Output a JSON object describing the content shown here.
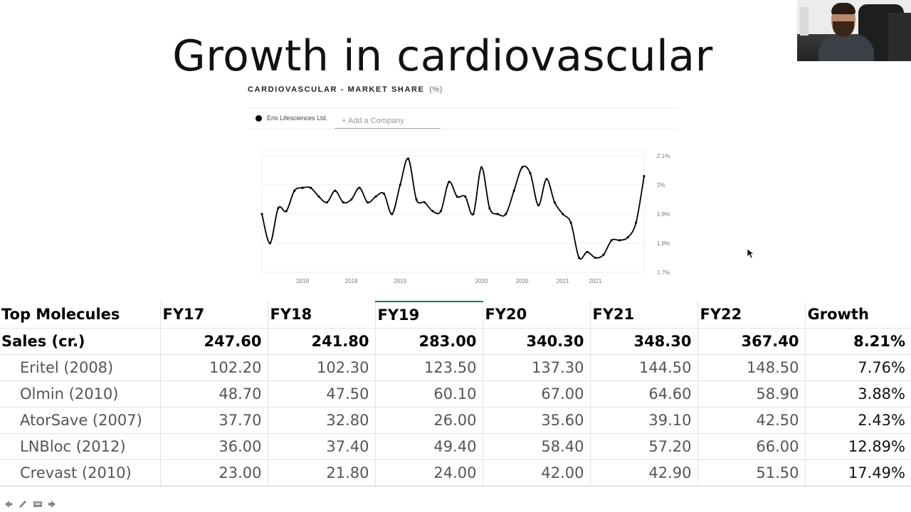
{
  "slide": {
    "title": "Growth in cardiovascular"
  },
  "chart_data": {
    "type": "line",
    "title": "CARDIOVASCULAR - MARKET SHARE",
    "title_unit": "(%)",
    "legend": {
      "entries": [
        "Eris Lifesciences Ltd."
      ],
      "placement": "top-left"
    },
    "add_company_placeholder": "+ Add a Company",
    "x_tick_labels": [
      "2018",
      "2018",
      "2019",
      "2020",
      "2020",
      "2021",
      "2021"
    ],
    "x_tick_positions": [
      10,
      22,
      34,
      54,
      64,
      74,
      82
    ],
    "y_tick_labels": [
      "2.1%",
      "2%",
      "1.9%",
      "1.8%",
      "1.7%"
    ],
    "ylim": [
      1.7,
      2.1
    ],
    "grid": true,
    "series": [
      {
        "name": "Eris Lifesciences Ltd.",
        "color": "#000000",
        "points": [
          [
            0,
            1.9
          ],
          [
            2,
            1.8
          ],
          [
            4,
            1.92
          ],
          [
            6,
            1.91
          ],
          [
            8,
            1.98
          ],
          [
            10,
            1.99
          ],
          [
            12,
            1.99
          ],
          [
            14,
            1.96
          ],
          [
            16,
            1.94
          ],
          [
            18,
            1.98
          ],
          [
            20,
            1.94
          ],
          [
            22,
            1.95
          ],
          [
            24,
            1.99
          ],
          [
            26,
            1.94
          ],
          [
            28,
            1.96
          ],
          [
            30,
            1.97
          ],
          [
            32,
            1.9
          ],
          [
            34,
            2.0
          ],
          [
            36,
            2.09
          ],
          [
            38,
            1.95
          ],
          [
            40,
            1.94
          ],
          [
            42,
            1.91
          ],
          [
            44,
            1.91
          ],
          [
            46,
            2.01
          ],
          [
            48,
            1.96
          ],
          [
            50,
            1.96
          ],
          [
            52,
            1.9
          ],
          [
            54,
            2.06
          ],
          [
            56,
            1.92
          ],
          [
            58,
            1.9
          ],
          [
            60,
            1.9
          ],
          [
            62,
            1.98
          ],
          [
            64,
            2.06
          ],
          [
            66,
            2.04
          ],
          [
            68,
            1.93
          ],
          [
            70,
            2.02
          ],
          [
            72,
            1.94
          ],
          [
            74,
            1.9
          ],
          [
            76,
            1.87
          ],
          [
            78,
            1.75
          ],
          [
            80,
            1.77
          ],
          [
            82,
            1.75
          ],
          [
            84,
            1.76
          ],
          [
            86,
            1.81
          ],
          [
            88,
            1.81
          ],
          [
            90,
            1.82
          ],
          [
            92,
            1.87
          ],
          [
            94,
            2.03
          ]
        ]
      }
    ]
  },
  "table": {
    "columns": [
      "Top Molecules",
      "FY17",
      "FY18",
      "FY19",
      "FY20",
      "FY21",
      "FY22",
      "Growth"
    ],
    "sales_row": [
      "Sales (cr.)",
      "247.60",
      "241.80",
      "283.00",
      "340.30",
      "348.30",
      "367.40",
      "8.21%"
    ],
    "rows": [
      [
        "Eritel (2008)",
        "102.20",
        "102.30",
        "123.50",
        "137.30",
        "144.50",
        "148.50",
        "7.76%"
      ],
      [
        "Olmin (2010)",
        "48.70",
        "47.50",
        "60.10",
        "67.00",
        "64.60",
        "58.90",
        "3.88%"
      ],
      [
        "AtorSave (2007)",
        "37.70",
        "32.80",
        "26.00",
        "35.60",
        "39.10",
        "42.50",
        "2.43%"
      ],
      [
        "LNBloc (2012)",
        "36.00",
        "37.40",
        "49.40",
        "58.40",
        "57.20",
        "66.00",
        "12.89%"
      ],
      [
        "Crevast (2010)",
        "23.00",
        "21.80",
        "24.00",
        "42.00",
        "42.90",
        "51.50",
        "17.49%"
      ]
    ]
  },
  "nav": {
    "icons": [
      "arrow-left-icon",
      "pencil-icon",
      "slides-menu-icon",
      "arrow-right-icon"
    ],
    "color": "#888888"
  },
  "colors": {
    "active_column_accent": "#1c7c4a"
  }
}
